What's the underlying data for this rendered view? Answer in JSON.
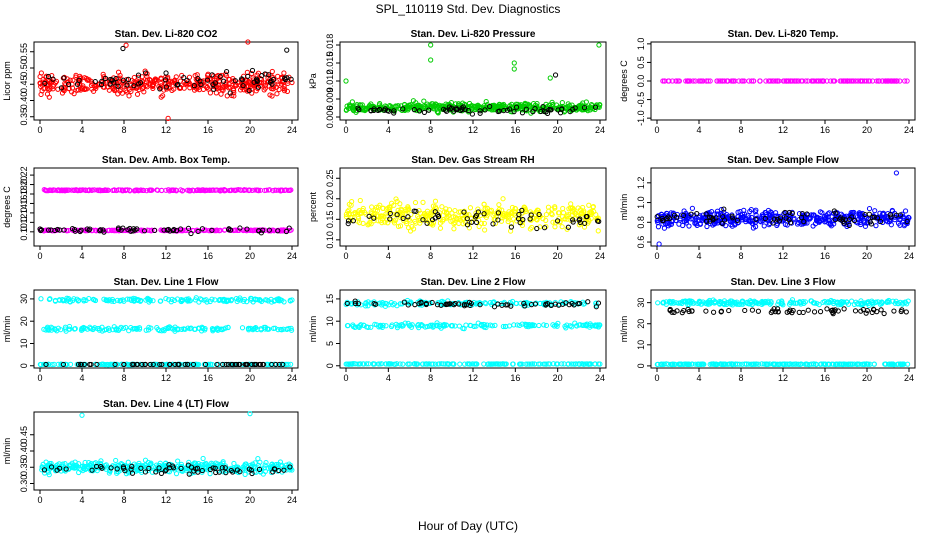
{
  "figure": {
    "title": "SPL_110119  Std. Dev. Diagnostics",
    "xlabel": "Hour of Day (UTC)"
  },
  "chart_data": [
    {
      "type": "scatter",
      "title": "Stan. Dev. Li-820 CO2",
      "ylabel": "Licor ppm",
      "xlim": [
        0,
        24
      ],
      "ylim": [
        0.34,
        0.58
      ],
      "xticks": [
        0,
        4,
        8,
        12,
        16,
        20,
        24
      ],
      "yticks": [
        0.35,
        0.4,
        0.45,
        0.5,
        0.55
      ],
      "ytick_labels": [
        "0.35",
        "0.40",
        "0.45",
        "0.50",
        "0.55"
      ],
      "series": [
        {
          "color": "#ff0000",
          "pattern": "band",
          "n": 420,
          "mean": 0.45,
          "spread": 0.05,
          "outliers": [
            [
              8.2,
              0.57
            ],
            [
              19.8,
              0.58
            ],
            [
              12.2,
              0.345
            ]
          ]
        },
        {
          "color": "#000000",
          "pattern": "band",
          "n": 70,
          "mean": 0.46,
          "spread": 0.05,
          "outliers": [
            [
              7.9,
              0.56
            ],
            [
              23.5,
              0.555
            ]
          ]
        }
      ]
    },
    {
      "type": "scatter",
      "title": "Stan. Dev. Li-820 Pressure",
      "ylabel": "kPa",
      "xlim": [
        0,
        24
      ],
      "ylim": [
        0.0055,
        0.0185
      ],
      "xticks": [
        0,
        4,
        8,
        12,
        16,
        20,
        24
      ],
      "yticks": [
        0.006,
        0.009,
        0.012,
        0.015,
        0.018
      ],
      "ytick_labels": [
        "0.006",
        "0.009",
        "0.012",
        "0.015",
        "0.018"
      ],
      "series": [
        {
          "color": "#00cc00",
          "pattern": "band",
          "n": 460,
          "mean": 0.0076,
          "spread": 0.0012,
          "outliers": [
            [
              0.0,
              0.012
            ],
            [
              8.0,
              0.018
            ],
            [
              8.0,
              0.0155
            ],
            [
              15.9,
              0.014
            ],
            [
              15.9,
              0.015
            ],
            [
              19.3,
              0.0125
            ],
            [
              23.9,
              0.018
            ]
          ]
        },
        {
          "color": "#000000",
          "pattern": "band",
          "n": 70,
          "mean": 0.0072,
          "spread": 0.001,
          "outliers": [
            [
              19.8,
              0.013
            ]
          ]
        }
      ]
    },
    {
      "type": "scatter",
      "title": "Stan. Dev. Li-820 Temp.",
      "ylabel": "degrees C",
      "xlim": [
        0,
        24
      ],
      "ylim": [
        -1.05,
        1.05
      ],
      "xticks": [
        0,
        4,
        8,
        12,
        16,
        20,
        24
      ],
      "yticks": [
        -1.0,
        -0.5,
        0.0,
        0.5,
        1.0
      ],
      "ytick_labels": [
        "-1.0",
        "-0.5",
        "0.0",
        "0.5",
        "1.0"
      ],
      "series": [
        {
          "color": "#ff00ff",
          "pattern": "line",
          "n": 160,
          "value": 0.0
        }
      ]
    },
    {
      "type": "scatter",
      "title": "Stan. Dev. Amb. Box Temp.",
      "ylabel": "degrees C",
      "xlim": [
        0,
        24
      ],
      "ylim": [
        0.07,
        0.235
      ],
      "xticks": [
        0,
        4,
        8,
        12,
        16,
        20,
        24
      ],
      "yticks": [
        0.1,
        0.12,
        0.14,
        0.16,
        0.18,
        0.2,
        0.22
      ],
      "ytick_labels": [
        "0.10",
        "0.12",
        "0.14",
        "0.16",
        "0.18",
        "0.20",
        "0.22"
      ],
      "series": [
        {
          "color": "#ff00ff",
          "pattern": "two-band",
          "n": 420,
          "means": [
            0.188,
            0.103
          ],
          "spread": 0.014
        },
        {
          "color": "#000000",
          "pattern": "band",
          "n": 60,
          "mean": 0.103,
          "spread": 0.008
        }
      ]
    },
    {
      "type": "scatter",
      "title": "Stan. Dev. Gas Stream RH",
      "ylabel": "percent",
      "xlim": [
        0,
        24
      ],
      "ylim": [
        0.085,
        0.275
      ],
      "xticks": [
        0,
        4,
        8,
        12,
        16,
        20,
        24
      ],
      "yticks": [
        0.1,
        0.15,
        0.2,
        0.25
      ],
      "ytick_labels": [
        "0.10",
        "0.15",
        "0.20",
        "0.25"
      ],
      "series": [
        {
          "color": "#ffff00",
          "pattern": "band",
          "n": 380,
          "mean": 0.16,
          "spread": 0.05
        },
        {
          "color": "#000000",
          "pattern": "band",
          "n": 55,
          "mean": 0.15,
          "spread": 0.04
        }
      ]
    },
    {
      "type": "scatter",
      "title": "Stan. Dev. Sample Flow",
      "ylabel": "ml/min",
      "xlim": [
        0,
        24
      ],
      "ylim": [
        0.56,
        1.35
      ],
      "xticks": [
        0,
        4,
        8,
        12,
        16,
        20,
        24
      ],
      "yticks": [
        0.6,
        0.8,
        1.0,
        1.2
      ],
      "ytick_labels": [
        "0.6",
        "0.8",
        "1.0",
        "1.2"
      ],
      "series": [
        {
          "color": "#0000ff",
          "pattern": "band",
          "n": 440,
          "mean": 0.84,
          "spread": 0.14,
          "outliers": [
            [
              0.2,
              0.58
            ],
            [
              22.8,
              1.3
            ]
          ]
        },
        {
          "color": "#000000",
          "pattern": "band",
          "n": 70,
          "mean": 0.85,
          "spread": 0.12
        }
      ]
    },
    {
      "type": "scatter",
      "title": "Stan. Dev. Line 1 Flow",
      "ylabel": "ml/min",
      "xlim": [
        0,
        24
      ],
      "ylim": [
        -1,
        34
      ],
      "xticks": [
        0,
        4,
        8,
        12,
        16,
        20,
        24
      ],
      "yticks": [
        0,
        10,
        20,
        30
      ],
      "ytick_labels": [
        "0",
        "10",
        "20",
        "30"
      ],
      "series": [
        {
          "color": "#00ffff",
          "pattern": "three-band",
          "n": 450,
          "means": [
            29.5,
            16.5,
            0.6
          ],
          "spread": 1.5
        },
        {
          "color": "#000000",
          "pattern": "line",
          "n": 60,
          "value": 0.6
        }
      ]
    },
    {
      "type": "scatter",
      "title": "Stan. Dev. Line 2 Flow",
      "ylabel": "ml/min",
      "xlim": [
        0,
        24
      ],
      "ylim": [
        -0.5,
        17
      ],
      "xticks": [
        0,
        4,
        8,
        12,
        16,
        20,
        24
      ],
      "yticks": [
        0,
        5,
        10,
        15
      ],
      "ytick_labels": [
        "0",
        "5",
        "10",
        "15"
      ],
      "series": [
        {
          "color": "#00ffff",
          "pattern": "three-band",
          "n": 450,
          "means": [
            14.0,
            9.0,
            0.4
          ],
          "spread": 0.8
        },
        {
          "color": "#000000",
          "pattern": "band",
          "n": 60,
          "mean": 13.8,
          "spread": 0.9
        }
      ]
    },
    {
      "type": "scatter",
      "title": "Stan. Dev. Line 3 Flow",
      "ylabel": "ml/min",
      "xlim": [
        0,
        24
      ],
      "ylim": [
        -1,
        36
      ],
      "xticks": [
        0,
        4,
        8,
        12,
        16,
        20,
        24
      ],
      "yticks": [
        0,
        10,
        20,
        30
      ],
      "ytick_labels": [
        "0",
        "10",
        "20",
        "30"
      ],
      "series": [
        {
          "color": "#00ffff",
          "pattern": "two-band",
          "n": 440,
          "means": [
            30.0,
            0.8
          ],
          "spread": 1.8
        },
        {
          "color": "#000000",
          "pattern": "band",
          "n": 60,
          "mean": 26.0,
          "spread": 2.0
        }
      ]
    },
    {
      "type": "scatter",
      "title": "Stan. Dev. Line 4 (LT) Flow",
      "ylabel": "ml/min",
      "xlim": [
        0,
        24
      ],
      "ylim": [
        0.28,
        0.52
      ],
      "xticks": [
        0,
        4,
        8,
        12,
        16,
        20,
        24
      ],
      "yticks": [
        0.3,
        0.35,
        0.4,
        0.45
      ],
      "ytick_labels": [
        "0.30",
        "0.35",
        "0.40",
        "0.45"
      ],
      "series": [
        {
          "color": "#00ffff",
          "pattern": "band",
          "n": 380,
          "mean": 0.35,
          "spread": 0.03,
          "outliers": [
            [
              4.0,
              0.51
            ],
            [
              20.0,
              0.515
            ]
          ]
        },
        {
          "color": "#000000",
          "pattern": "band",
          "n": 60,
          "mean": 0.345,
          "spread": 0.025
        }
      ]
    }
  ]
}
